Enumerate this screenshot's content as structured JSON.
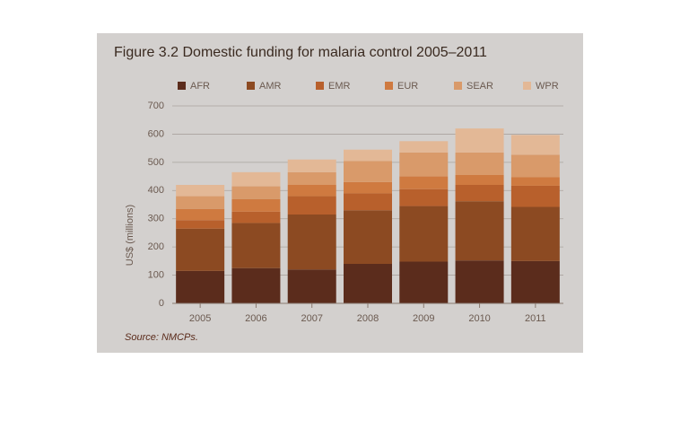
{
  "chart_data": {
    "type": "stacked-bar",
    "title": "Figure 3.2 Domestic funding for malaria control 2005–2011",
    "y_label": "US$ (millions)",
    "source": "Source: NMCPs.",
    "categories": [
      "2005",
      "2006",
      "2007",
      "2008",
      "2009",
      "2010",
      "2011"
    ],
    "series": [
      {
        "name": "AFR",
        "color": "#5b2c1c",
        "values": [
          115,
          125,
          120,
          140,
          148,
          152,
          150
        ]
      },
      {
        "name": "AMR",
        "color": "#8c4a22",
        "values": [
          150,
          160,
          195,
          190,
          197,
          210,
          192
        ]
      },
      {
        "name": "EMR",
        "color": "#b8602c",
        "values": [
          30,
          40,
          65,
          60,
          60,
          58,
          75
        ]
      },
      {
        "name": "EUR",
        "color": "#cf7a40",
        "values": [
          40,
          45,
          40,
          40,
          45,
          35,
          30
        ]
      },
      {
        "name": "SEAR",
        "color": "#d99a6a",
        "values": [
          45,
          45,
          45,
          75,
          85,
          80,
          80
        ]
      },
      {
        "name": "WPR",
        "color": "#e3b896",
        "values": [
          40,
          50,
          45,
          40,
          40,
          85,
          70
        ]
      }
    ],
    "ylim": [
      0,
      700
    ],
    "yticks": [
      0,
      100,
      200,
      300,
      400,
      500,
      600,
      700
    ],
    "grid": true
  }
}
